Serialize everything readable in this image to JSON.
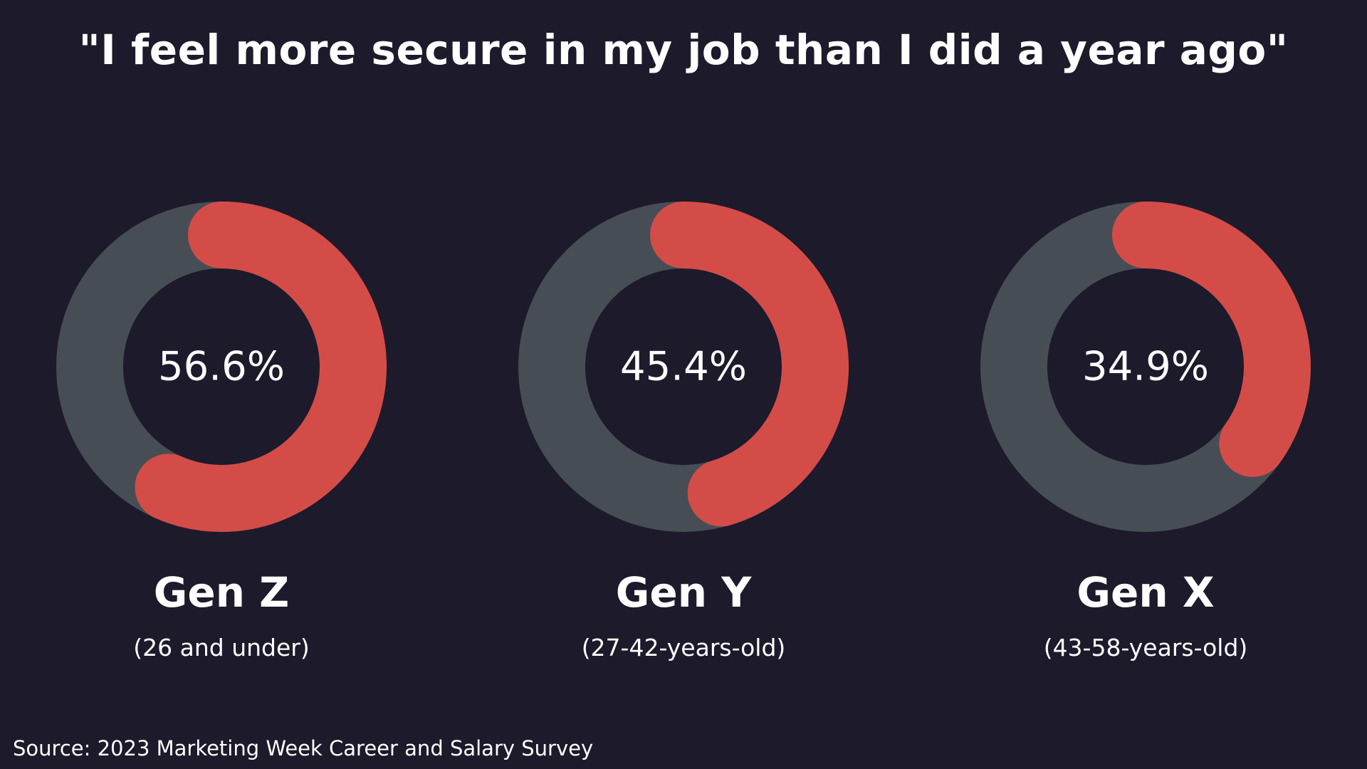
{
  "chart_data": {
    "type": "donut",
    "title": "\"I feel more secure in my job than I did a year ago\"",
    "unit": "%",
    "colors": {
      "background": "#1d1a2b",
      "track": "#474d55",
      "value": "#d44c47",
      "text": "#ffffff"
    },
    "series": [
      {
        "name": "Gen Z",
        "subtitle": "(26 and under)",
        "value": 56.6,
        "label": "56.6%"
      },
      {
        "name": "Gen Y",
        "subtitle": "(27-42-years-old)",
        "value": 45.4,
        "label": "45.4%"
      },
      {
        "name": "Gen X",
        "subtitle": "(43-58-years-old)",
        "value": 34.9,
        "label": "34.9%"
      }
    ]
  },
  "source": "Source: 2023 Marketing Week Career and Salary Survey"
}
